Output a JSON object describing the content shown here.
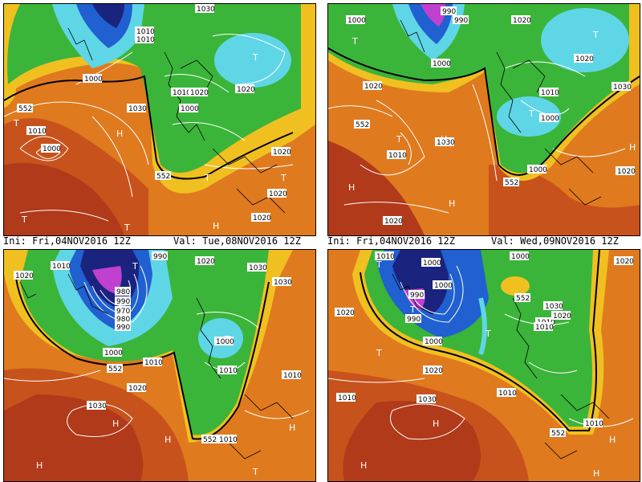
{
  "captions": {
    "left_ini": "Ini: Fri,04NOV2016 12Z",
    "left_val": "Val: Tue,08NOV2016 12Z",
    "right_ini": "Ini: Fri,04NOV2016 12Z",
    "right_val": "Val: Wed,09NOV2016 12Z"
  },
  "colors": {
    "deep_red": "#b03a1a",
    "orange": "#e07a1e",
    "yellow": "#f0c020",
    "green": "#3bb43a",
    "cyan": "#5fd6e6",
    "blue": "#2060d0",
    "navy": "#1a237e",
    "magenta": "#c040d0",
    "isobar": "#ffffff",
    "coast": "#000000"
  },
  "panels": {
    "top_left": {
      "isobar_labels": [
        "1030",
        "1010",
        "1010",
        "1000",
        "1020",
        "1010",
        "1020",
        "1000",
        "552",
        "1030",
        "1010",
        "1000",
        "552",
        "1020",
        "1020",
        "1020"
      ],
      "pressure_marks": [
        "T",
        "T",
        "H",
        "T",
        "H",
        "T",
        "T",
        "T"
      ]
    },
    "top_right": {
      "isobar_labels": [
        "990",
        "1000",
        "990",
        "1020",
        "1000",
        "1020",
        "1020",
        "1030",
        "1010",
        "1000",
        "552",
        "1010",
        "1030",
        "1000",
        "552",
        "1020",
        "1020"
      ],
      "pressure_marks": [
        "T",
        "T",
        "T",
        "H",
        "T",
        "H",
        "H",
        "H"
      ]
    },
    "bottom_left": {
      "isobar_labels": [
        "1010",
        "990",
        "1020",
        "1030",
        "1020",
        "980",
        "990",
        "970",
        "980",
        "990",
        "1000",
        "1030",
        "1000",
        "1010",
        "552",
        "1010",
        "1020",
        "1010",
        "1030",
        "552",
        "1010"
      ],
      "pressure_marks": [
        "T",
        "T",
        "H",
        "H",
        "H",
        "T",
        "H"
      ]
    },
    "bottom_right": {
      "isobar_labels": [
        "1010",
        "1000",
        "1000",
        "1020",
        "1000",
        "990",
        "552",
        "1030",
        "1020",
        "990",
        "1010",
        "1020",
        "1000",
        "1010",
        "1020",
        "1010",
        "1030",
        "1010",
        "552",
        "1010"
      ],
      "pressure_marks": [
        "T",
        "T",
        "T",
        "H",
        "T",
        "H",
        "H",
        "H"
      ]
    }
  }
}
